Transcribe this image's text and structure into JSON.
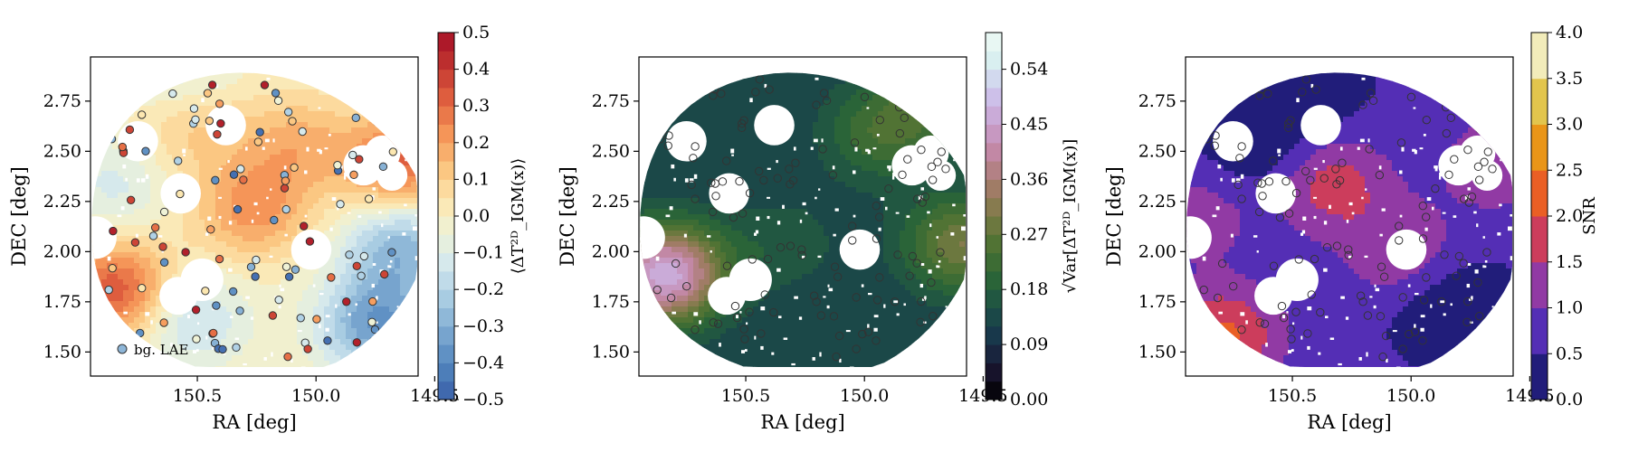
{
  "chart_data": [
    {
      "type": "heatmap",
      "xlabel": "RA [deg]",
      "ylabel": "DEC [deg]",
      "xlim": [
        150.95,
        149.57
      ],
      "ylim": [
        1.38,
        2.97
      ],
      "xticks": [
        150.5,
        150.0,
        149.5
      ],
      "xtick_labels": [
        "150.5",
        "150.0",
        "149.5"
      ],
      "yticks": [
        1.5,
        1.75,
        2.0,
        2.25,
        2.5,
        2.75
      ],
      "ytick_labels": [
        "1.50",
        "1.75",
        "2.00",
        "2.25",
        "2.50",
        "2.75"
      ],
      "colorbar": {
        "label": "⟨ΔT²ᴰ_IGM(x)⟩",
        "range": [
          -0.5,
          0.5
        ],
        "ticks": [
          "0.5",
          "0.4",
          "0.3",
          "0.2",
          "0.1",
          "0.0",
          "−0.1",
          "−0.2",
          "−0.3",
          "−0.4",
          "−0.5"
        ],
        "colormap": "RdYlBu_r"
      },
      "legend": {
        "label": "bg. LAE",
        "position": "lower-left"
      },
      "field": [
        {
          "ra": 150.28,
          "dec": 2.22,
          "amp": 0.22
        },
        {
          "ra": 149.65,
          "dec": 2.45,
          "amp": 0.32
        },
        {
          "ra": 150.85,
          "dec": 1.82,
          "amp": 0.35
        },
        {
          "ra": 150.55,
          "dec": 2.62,
          "amp": 0.12
        },
        {
          "ra": 150.1,
          "dec": 2.55,
          "amp": 0.16
        },
        {
          "ra": 150.55,
          "dec": 1.68,
          "amp": -0.18
        },
        {
          "ra": 149.75,
          "dec": 1.65,
          "amp": -0.35
        },
        {
          "ra": 149.65,
          "dec": 2.05,
          "amp": -0.28
        },
        {
          "ra": 150.85,
          "dec": 2.35,
          "amp": -0.12
        },
        {
          "ra": 150.6,
          "dec": 2.9,
          "amp": -0.1
        }
      ]
    },
    {
      "type": "heatmap",
      "xlabel": "RA [deg]",
      "ylabel": "DEC [deg]",
      "xlim": [
        150.95,
        149.57
      ],
      "ylim": [
        1.38,
        2.97
      ],
      "xticks": [
        150.5,
        150.0,
        149.5
      ],
      "xtick_labels": [
        "150.5",
        "150.0",
        "149.5"
      ],
      "yticks": [
        1.5,
        1.75,
        2.0,
        2.25,
        2.5,
        2.75
      ],
      "ytick_labels": [
        "1.50",
        "1.75",
        "2.00",
        "2.25",
        "2.50",
        "2.75"
      ],
      "colorbar": {
        "label": "√Var[ΔT²ᴰ_IGM(x)]",
        "range": [
          0.0,
          0.6
        ],
        "ticks": [
          "0.54",
          "0.45",
          "0.36",
          "0.27",
          "0.18",
          "0.09",
          "0.00"
        ],
        "colormap": "cubehelix"
      },
      "field": [
        {
          "ra": 149.6,
          "dec": 2.05,
          "amp": 0.18
        },
        {
          "ra": 150.85,
          "dec": 1.9,
          "amp": 0.35
        },
        {
          "ra": 149.95,
          "dec": 2.6,
          "amp": 0.1
        },
        {
          "ra": 149.75,
          "dec": 2.75,
          "amp": 0.08
        },
        {
          "ra": 150.35,
          "dec": 2.05,
          "amp": 0.05
        }
      ]
    },
    {
      "type": "heatmap",
      "xlabel": "RA [deg]",
      "ylabel": "DEC [deg]",
      "xlim": [
        150.95,
        149.57
      ],
      "ylim": [
        1.38,
        2.97
      ],
      "xticks": [
        150.5,
        150.0,
        149.5
      ],
      "xtick_labels": [
        "150.5",
        "150.0",
        "149.5"
      ],
      "yticks": [
        1.5,
        1.75,
        2.0,
        2.25,
        2.5,
        2.75
      ],
      "ytick_labels": [
        "1.50",
        "1.75",
        "2.00",
        "2.25",
        "2.50",
        "2.75"
      ],
      "colorbar": {
        "label": "SNR",
        "range": [
          0.0,
          4.0
        ],
        "ticks": [
          "4.0",
          "3.5",
          "3.0",
          "2.5",
          "2.0",
          "1.5",
          "1.0",
          "0.5",
          "0.0"
        ],
        "colormap": "CMRmap"
      },
      "field": [
        {
          "ra": 150.8,
          "dec": 1.6,
          "amp": 1.5
        },
        {
          "ra": 150.35,
          "dec": 2.35,
          "amp": 1.2
        },
        {
          "ra": 150.05,
          "dec": 2.0,
          "amp": 0.9
        },
        {
          "ra": 149.65,
          "dec": 2.45,
          "amp": 0.8
        },
        {
          "ra": 150.9,
          "dec": 2.2,
          "amp": 0.7
        },
        {
          "ra": 150.5,
          "dec": 2.85,
          "amp": -0.8
        },
        {
          "ra": 149.85,
          "dec": 1.75,
          "amp": -0.7
        },
        {
          "ra": 150.65,
          "dec": 2.5,
          "amp": -0.6
        }
      ]
    }
  ],
  "masks": [
    {
      "ra": 150.75,
      "dec": 2.55,
      "r": 0.085
    },
    {
      "ra": 150.57,
      "dec": 2.29,
      "r": 0.085
    },
    {
      "ra": 150.38,
      "dec": 2.63,
      "r": 0.085
    },
    {
      "ra": 150.93,
      "dec": 2.07,
      "r": 0.09
    },
    {
      "ra": 150.48,
      "dec": 1.86,
      "r": 0.09
    },
    {
      "ra": 150.58,
      "dec": 1.78,
      "r": 0.08
    },
    {
      "ra": 150.02,
      "dec": 2.01,
      "r": 0.085
    },
    {
      "ra": 149.8,
      "dec": 2.43,
      "r": 0.085
    },
    {
      "ra": 149.72,
      "dec": 2.49,
      "r": 0.075
    },
    {
      "ra": 149.68,
      "dec": 2.38,
      "r": 0.065
    }
  ]
}
